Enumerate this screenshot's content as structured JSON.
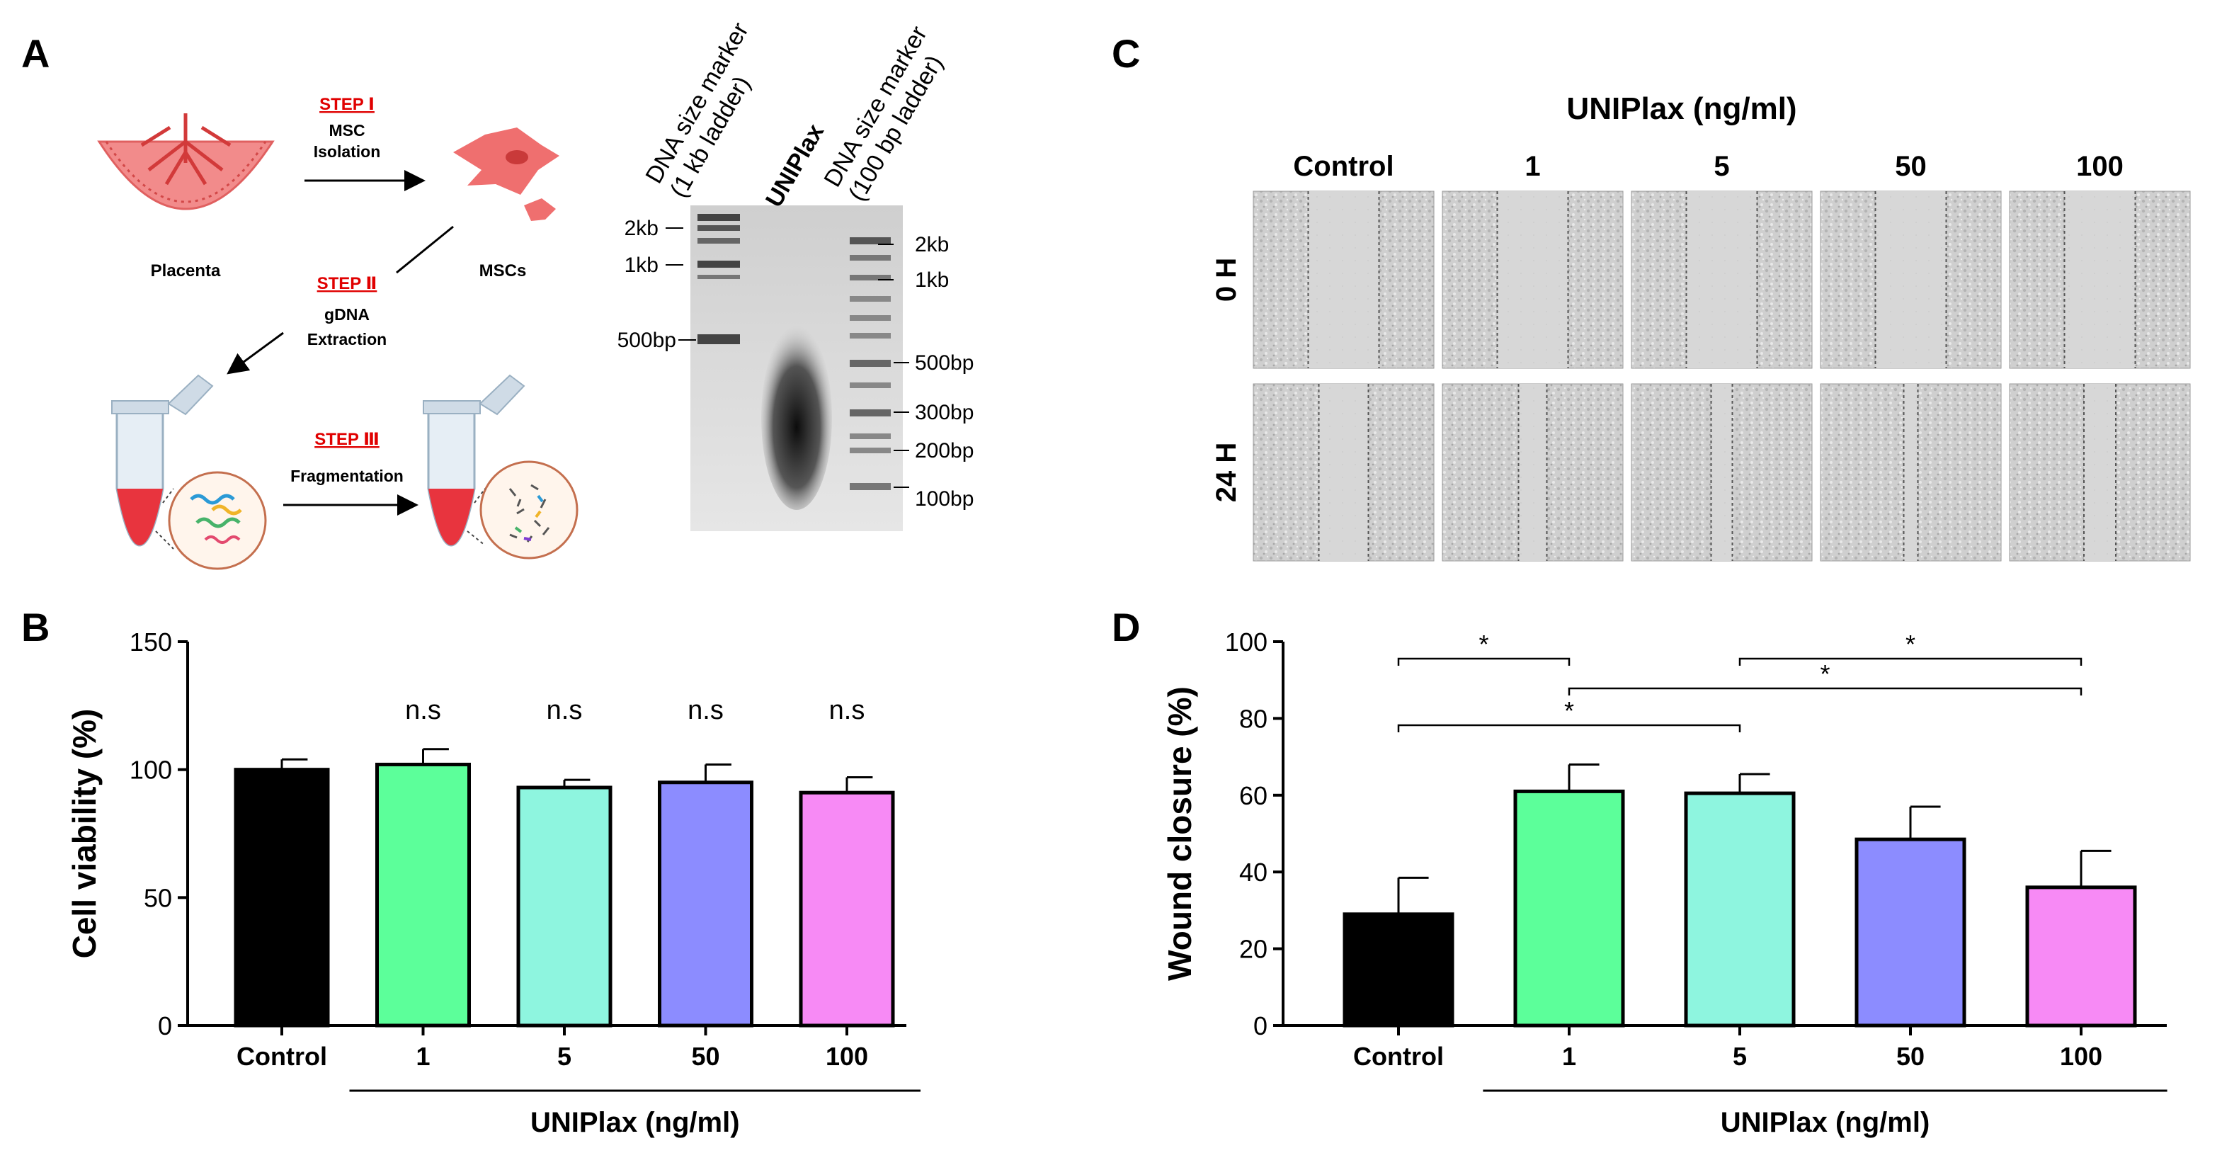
{
  "panel_labels": {
    "a": "A",
    "b": "B",
    "c": "C",
    "d": "D"
  },
  "panel_a": {
    "step1": "STEP Ⅰ",
    "step1_desc": [
      "MSC",
      "Isolation"
    ],
    "step2": "STEP Ⅱ",
    "step2_desc": [
      "gDNA",
      "Extraction"
    ],
    "step3": "STEP Ⅲ",
    "step3_desc": "Fragmentation",
    "placenta_label": "Placenta",
    "mscs_label": "MSCs",
    "gel": {
      "lane1_title": [
        "DNA size marker",
        "(1 kb ladder)"
      ],
      "lane2_title": "UNIPlax",
      "lane3_title": [
        "DNA size marker",
        "(100 bp ladder)"
      ],
      "left_markers": [
        "2kb",
        "1kb",
        "500bp"
      ],
      "right_markers": [
        "2kb",
        "1kb",
        "500bp",
        "300bp",
        "200bp",
        "100bp"
      ]
    }
  },
  "panel_c": {
    "header": "UNIPlax (ng/ml)",
    "columns": [
      "Control",
      "1",
      "5",
      "50",
      "100"
    ],
    "rows": [
      "0 H",
      "24 H"
    ]
  },
  "chart_data": [
    {
      "type": "bar",
      "ylabel": "Cell viability (%)",
      "xlabel": "UNIPlax (ng/ml)",
      "categories": [
        "Control",
        "1",
        "5",
        "50",
        "100"
      ],
      "values": [
        100,
        102,
        93,
        95,
        91
      ],
      "errors": [
        4,
        6,
        3,
        7,
        6
      ],
      "significance": [
        "",
        "n.s",
        "n.s",
        "n.s",
        "n.s"
      ],
      "ylim": [
        0,
        150
      ],
      "yticks": [
        0,
        50,
        100,
        150
      ],
      "colors": [
        "#000000",
        "#5cff9a",
        "#8ef5df",
        "#8c8cff",
        "#f78af5"
      ]
    },
    {
      "type": "bar",
      "ylabel": "Wound closure (%)",
      "xlabel": "UNIPlax (ng/ml)",
      "categories": [
        "Control",
        "1",
        "5",
        "50",
        "100"
      ],
      "values": [
        29,
        61,
        60.5,
        48.5,
        36
      ],
      "errors": [
        9.5,
        7,
        5,
        8.5,
        9.5
      ],
      "ylim": [
        0,
        100
      ],
      "yticks": [
        0,
        20,
        40,
        60,
        80,
        100
      ],
      "colors": [
        "#000000",
        "#5cff9a",
        "#8ef5df",
        "#8c8cff",
        "#f78af5"
      ],
      "comparisons": [
        {
          "from": "Control",
          "to": "1",
          "label": "*"
        },
        {
          "from": "5",
          "to": "100",
          "label": "*"
        },
        {
          "from": "1",
          "to": "100",
          "label": "*"
        },
        {
          "from": "Control",
          "to": "5",
          "label": "*"
        }
      ]
    }
  ]
}
